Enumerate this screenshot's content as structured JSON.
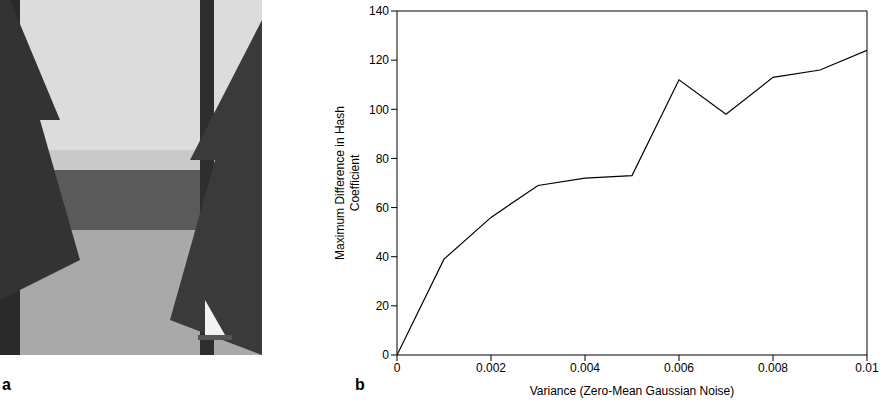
{
  "image_panel": {
    "label": "a"
  },
  "chart_data": {
    "type": "line",
    "panel_label": "b",
    "x_label": "Variance (Zero-Mean Gaussian Noise)",
    "y_label": "Maximum Difference in Hash Coefficient",
    "x": [
      0,
      0.001,
      0.002,
      0.003,
      0.004,
      0.005,
      0.006,
      0.007,
      0.008,
      0.009,
      0.01
    ],
    "values": [
      0,
      39,
      56,
      69,
      72,
      73,
      112,
      98,
      113,
      116,
      124
    ],
    "color": "#000000",
    "xlim": [
      0,
      0.01
    ],
    "xticks": [
      0,
      0.002,
      0.004,
      0.006,
      0.008,
      0.01
    ],
    "ylim": [
      0,
      140
    ],
    "yticks": [
      0,
      20,
      40,
      60,
      80,
      100,
      120,
      140
    ],
    "grid": false
  }
}
